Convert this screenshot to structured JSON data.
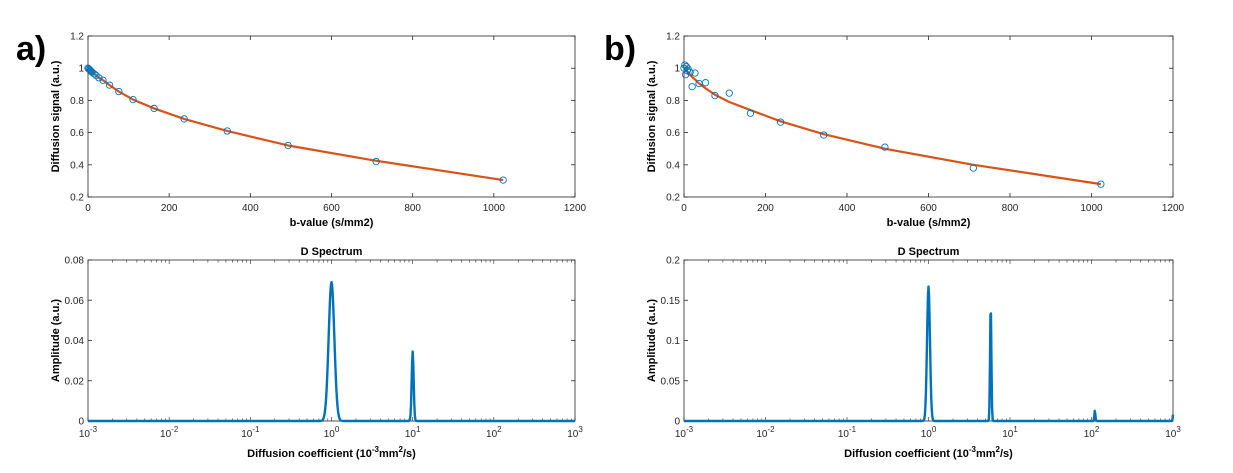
{
  "panel_labels": [
    "a)",
    "b)"
  ],
  "colors": {
    "fit": "#D95319",
    "marker": "#0072BD",
    "spectrum": "#0072BD",
    "axis": "#262626"
  },
  "chart_data": [
    {
      "id": "a-signal",
      "type": "scatter",
      "title": "",
      "xlabel": "b-value (s/mm2)",
      "ylabel": "Diffusion signal (a.u.)",
      "xscale": "linear",
      "xlim": [
        0,
        1200
      ],
      "ylim": [
        0.2,
        1.2
      ],
      "xticks": [
        0,
        200,
        400,
        600,
        800,
        1000,
        1200
      ],
      "xtick_labels": [
        "0",
        "200",
        "400",
        "600",
        "800",
        "1000",
        "1200"
      ],
      "yticks": [
        0.2,
        0.4,
        0.6,
        0.8,
        1,
        1.2
      ],
      "ytick_labels": [
        "0.2",
        "0.4",
        "0.6",
        "0.8",
        "1",
        "1.2"
      ],
      "series": [
        {
          "name": "measured",
          "kind": "markers",
          "x": [
            0,
            2,
            4,
            6,
            8,
            10,
            15,
            20,
            27,
            37,
            53,
            76,
            111,
            163,
            237,
            343,
            493,
            710,
            1023
          ],
          "y": [
            1.0,
            0.995,
            0.99,
            0.985,
            0.98,
            0.975,
            0.965,
            0.955,
            0.94,
            0.925,
            0.895,
            0.855,
            0.805,
            0.75,
            0.685,
            0.61,
            0.52,
            0.42,
            0.305
          ]
        },
        {
          "name": "fit",
          "kind": "line",
          "x": [
            0,
            2,
            4,
            6,
            8,
            10,
            15,
            20,
            27,
            37,
            53,
            76,
            111,
            163,
            237,
            343,
            493,
            710,
            1023
          ],
          "y": [
            1.0,
            0.995,
            0.99,
            0.985,
            0.98,
            0.975,
            0.965,
            0.955,
            0.94,
            0.925,
            0.895,
            0.855,
            0.805,
            0.75,
            0.685,
            0.61,
            0.52,
            0.425,
            0.305
          ]
        }
      ]
    },
    {
      "id": "a-spectrum",
      "type": "line",
      "title": "D Spectrum",
      "xlabel_parts": [
        "Diffusion coefficient (10",
        "-3",
        "mm",
        "2",
        "/s)"
      ],
      "ylabel": "Amplitude (a.u.)",
      "xscale": "log",
      "xlim": [
        0.001,
        1000
      ],
      "ylim": [
        0,
        0.08
      ],
      "xtick_exponents": [
        "-3",
        "-2",
        "-1",
        "0",
        "1",
        "2",
        "3"
      ],
      "yticks": [
        0,
        0.02,
        0.04,
        0.06,
        0.08
      ],
      "ytick_labels": [
        "0",
        "0.02",
        "0.04",
        "0.06",
        "0.08"
      ],
      "peaks": [
        {
          "center": 1.0,
          "height": 0.069,
          "width": 0.035
        },
        {
          "center": 10.0,
          "height": 0.0345,
          "width": 0.012
        }
      ]
    },
    {
      "id": "b-signal",
      "type": "scatter",
      "title": "",
      "xlabel": "b-value (s/mm2)",
      "ylabel": "Diffusion signal (a.u.)",
      "xscale": "linear",
      "xlim": [
        0,
        1200
      ],
      "ylim": [
        0.2,
        1.2
      ],
      "xticks": [
        0,
        200,
        400,
        600,
        800,
        1000,
        1200
      ],
      "xtick_labels": [
        "0",
        "200",
        "400",
        "600",
        "800",
        "1000",
        "1200"
      ],
      "yticks": [
        0.2,
        0.4,
        0.6,
        0.8,
        1,
        1.2
      ],
      "ytick_labels": [
        "0.2",
        "0.4",
        "0.6",
        "0.8",
        "1",
        "1.2"
      ],
      "series": [
        {
          "name": "measured",
          "kind": "markers",
          "x": [
            0,
            2,
            4,
            6,
            8,
            10,
            15,
            20,
            27,
            37,
            53,
            76,
            111,
            163,
            237,
            343,
            493,
            710,
            1023
          ],
          "y": [
            1.0,
            1.02,
            0.96,
            1.01,
            0.985,
            0.995,
            0.975,
            0.885,
            0.97,
            0.905,
            0.91,
            0.83,
            0.845,
            0.72,
            0.665,
            0.585,
            0.51,
            0.38,
            0.28
          ]
        },
        {
          "name": "fit",
          "kind": "line",
          "x": [
            0,
            2,
            4,
            6,
            8,
            10,
            15,
            20,
            27,
            37,
            53,
            76,
            111,
            163,
            237,
            343,
            493,
            710,
            1023
          ],
          "y": [
            1.0,
            0.995,
            0.99,
            0.985,
            0.98,
            0.975,
            0.96,
            0.945,
            0.93,
            0.905,
            0.875,
            0.835,
            0.79,
            0.74,
            0.67,
            0.59,
            0.5,
            0.4,
            0.28
          ]
        }
      ]
    },
    {
      "id": "b-spectrum",
      "type": "line",
      "title": "D Spectrum",
      "xlabel_parts": [
        "Diffusion coefficient (10",
        "-3",
        "mm",
        "2",
        "/s)"
      ],
      "ylabel": "Amplitude (a.u.)",
      "xscale": "log",
      "xlim": [
        0.001,
        1000
      ],
      "ylim": [
        0,
        0.2
      ],
      "xtick_exponents": [
        "-3",
        "-2",
        "-1",
        "0",
        "1",
        "2",
        "3"
      ],
      "yticks": [
        0,
        0.05,
        0.1,
        0.15,
        0.2
      ],
      "ytick_labels": [
        "0",
        "0.05",
        "0.1",
        "0.15",
        "0.2"
      ],
      "peaks": [
        {
          "center": 1.0,
          "height": 0.167,
          "width": 0.018
        },
        {
          "center": 5.8,
          "height": 0.145,
          "width": 0.008
        },
        {
          "center": 110,
          "height": 0.013,
          "width": 0.006
        },
        {
          "center": 1000,
          "height": 0.008,
          "width": 0.004
        }
      ]
    }
  ]
}
